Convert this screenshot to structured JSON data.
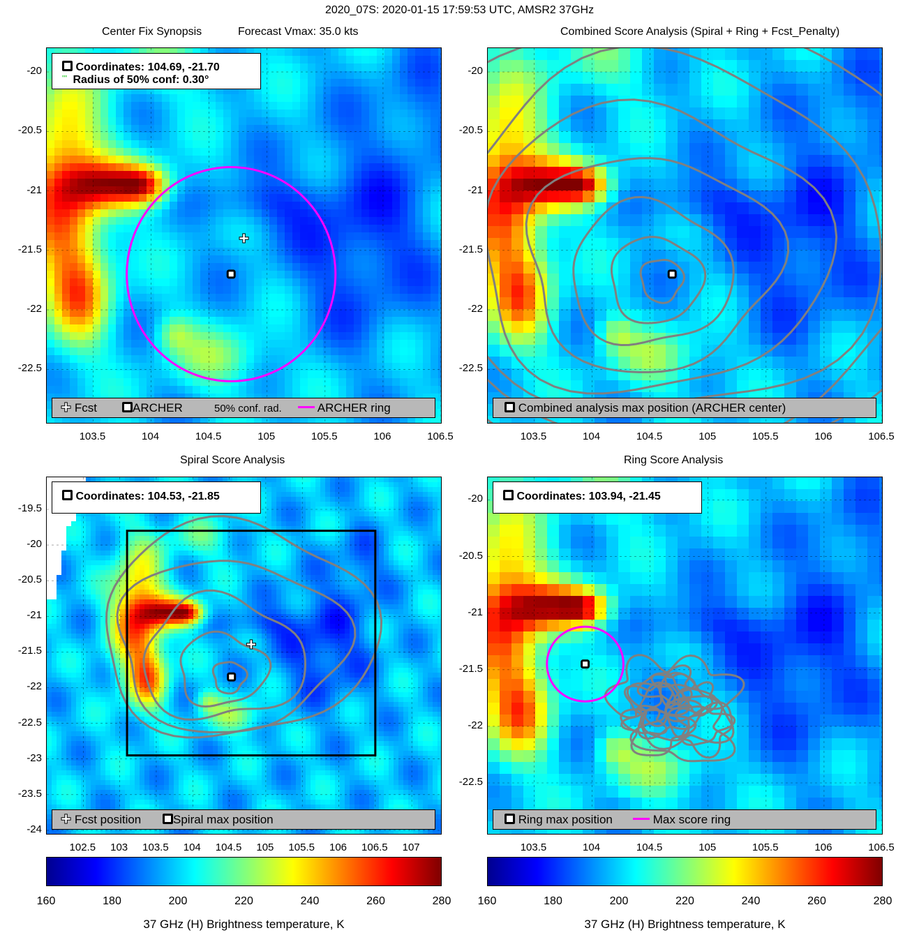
{
  "page_title": "2020_07S: 2020-01-15 17:59:53 UTC, AMSR2 37GHz",
  "panels": {
    "p1": {
      "title_left": "Center Fix Synopsis",
      "title_right": "Forecast Vmax: 35.0 kts",
      "info_line1": "Coordinates: 104.69, -21.70",
      "info_line2": "Radius of 50% conf: 0.30°",
      "legend": {
        "fcst": "Fcst",
        "archer": "ARCHER",
        "conf": "50% conf. rad.",
        "ring": "ARCHER ring"
      },
      "xticks": [
        "103.5",
        "104",
        "104.5",
        "105",
        "105.5",
        "106",
        "106.5"
      ],
      "yticks": [
        "-20",
        "-20.5",
        "-21",
        "-21.5",
        "-22",
        "-22.5"
      ]
    },
    "p2": {
      "title": "Combined Score Analysis (Spiral + Ring + Fcst_Penalty)",
      "legend": {
        "archer": "Combined analysis max position (ARCHER center)"
      },
      "xticks": [
        "103.5",
        "104",
        "104.5",
        "105",
        "105.5",
        "106",
        "106.5"
      ],
      "yticks": [
        "-20",
        "-20.5",
        "-21",
        "-21.5",
        "-22",
        "-22.5"
      ]
    },
    "p3": {
      "title": "Spiral Score Analysis",
      "info_line1": "Coordinates: 104.53, -21.85",
      "legend": {
        "fcst": "Fcst position",
        "spiral": "Spiral max position"
      },
      "xticks": [
        "102.5",
        "103",
        "103.5",
        "104",
        "104.5",
        "105",
        "105.5",
        "106",
        "106.5",
        "107"
      ],
      "yticks": [
        "-19.5",
        "-20",
        "-20.5",
        "-21",
        "-21.5",
        "-22",
        "-22.5",
        "-23",
        "-23.5",
        "-24"
      ]
    },
    "p4": {
      "title": "Ring Score Analysis",
      "info_line1": "Coordinates: 103.94, -21.45",
      "legend": {
        "ring": "Ring max position",
        "maxring": "Max score ring"
      },
      "xticks": [
        "103.5",
        "104",
        "104.5",
        "105",
        "105.5",
        "106",
        "106.5"
      ],
      "yticks": [
        "-20",
        "-20.5",
        "-21",
        "-21.5",
        "-22",
        "-22.5"
      ]
    }
  },
  "colorbar": {
    "ticks": [
      "160",
      "180",
      "200",
      "220",
      "240",
      "260",
      "280"
    ],
    "label": "37 GHz (H) Brightness temperature, K"
  },
  "chart_data": [
    {
      "type": "heatmap",
      "title": "Center Fix Synopsis",
      "xlim": [
        103.1,
        106.5
      ],
      "ylim": [
        -22.95,
        -19.8
      ],
      "points": [
        {
          "label": "ARCHER",
          "x": 104.69,
          "y": -21.7
        },
        {
          "label": "Fcst",
          "x": 104.8,
          "y": -21.4
        }
      ],
      "ring": {
        "center": [
          104.69,
          -21.7
        ],
        "radius_deg": 0.9,
        "color": "#ff00ff"
      },
      "confidence_radius_deg": 0.3,
      "colorbar_range": [
        160,
        280
      ],
      "grid": true
    },
    {
      "type": "heatmap",
      "title": "Combined Score Analysis (Spiral + Ring + Fcst_Penalty)",
      "xlim": [
        103.1,
        106.5
      ],
      "ylim": [
        -22.95,
        -19.8
      ],
      "points": [
        {
          "label": "ARCHER center",
          "x": 104.69,
          "y": -21.7
        }
      ],
      "contours": true,
      "grid": true
    },
    {
      "type": "heatmap",
      "title": "Spiral Score Analysis",
      "xlim": [
        102.0,
        107.4
      ],
      "ylim": [
        -24.05,
        -19.05
      ],
      "points": [
        {
          "label": "Spiral max",
          "x": 104.53,
          "y": -21.85
        },
        {
          "label": "Fcst",
          "x": 104.8,
          "y": -21.4
        }
      ],
      "box": {
        "x": [
          103.1,
          106.5
        ],
        "y": [
          -22.95,
          -19.8
        ]
      },
      "contours": true,
      "grid": true
    },
    {
      "type": "heatmap",
      "title": "Ring Score Analysis",
      "xlim": [
        103.1,
        106.5
      ],
      "ylim": [
        -22.95,
        -19.8
      ],
      "points": [
        {
          "label": "Ring max",
          "x": 103.94,
          "y": -21.45
        }
      ],
      "ring": {
        "center": [
          103.94,
          -21.45
        ],
        "radius_deg": 0.33,
        "color": "#ff00ff"
      },
      "contours": true,
      "grid": true
    }
  ]
}
